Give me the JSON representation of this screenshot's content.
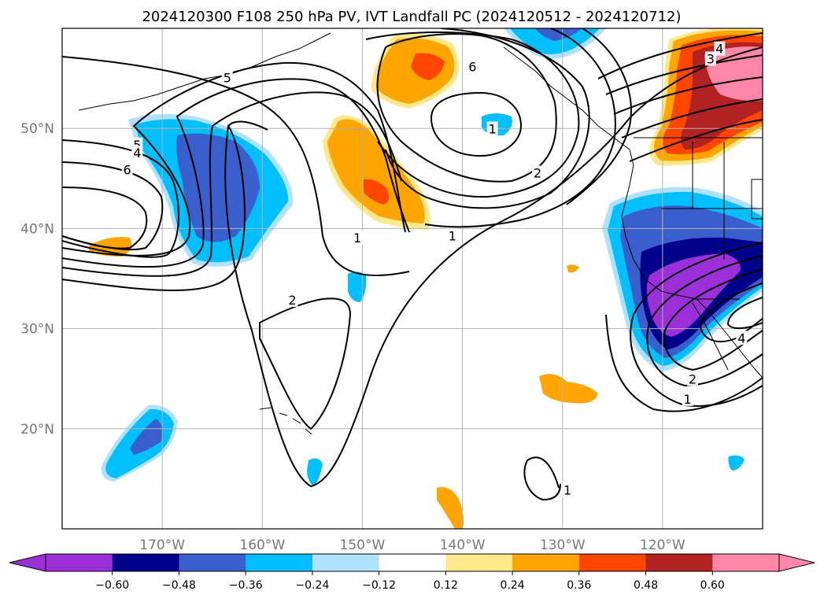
{
  "title": "2024120300 F108 250 hPa PV, IVT Landfall PC (2024120512 - 2024120712)",
  "map": {
    "lon_range": [
      -180,
      -110
    ],
    "lat_range": [
      10,
      60
    ],
    "lat_ticks": [
      {
        "value": 50,
        "label": "50°N"
      },
      {
        "value": 40,
        "label": "40°N"
      },
      {
        "value": 30,
        "label": "30°N"
      },
      {
        "value": 20,
        "label": "20°N"
      }
    ],
    "lon_ticks": [
      {
        "value": -170,
        "label": "170°W"
      },
      {
        "value": -160,
        "label": "160°W"
      },
      {
        "value": -150,
        "label": "150°W"
      },
      {
        "value": -140,
        "label": "140°W"
      },
      {
        "value": -130,
        "label": "130°W"
      },
      {
        "value": -120,
        "label": "120°W"
      }
    ],
    "grid": true
  },
  "contour_labels": [
    {
      "text": "5",
      "lon": -172.5,
      "lat": 48.3
    },
    {
      "text": "4",
      "lon": -172.5,
      "lat": 47.5
    },
    {
      "text": "6",
      "lon": -173.5,
      "lat": 45.8
    },
    {
      "text": "5",
      "lon": -163.5,
      "lat": 55.0
    },
    {
      "text": "6",
      "lon": -139.0,
      "lat": 56.1
    },
    {
      "text": "1",
      "lon": -137.0,
      "lat": 49.9
    },
    {
      "text": "2",
      "lon": -132.5,
      "lat": 45.5
    },
    {
      "text": "1",
      "lon": -150.5,
      "lat": 39.0
    },
    {
      "text": "1",
      "lon": -141.0,
      "lat": 39.2
    },
    {
      "text": "2",
      "lon": -157.0,
      "lat": 32.8
    },
    {
      "text": "1",
      "lon": -129.5,
      "lat": 13.8
    },
    {
      "text": "3",
      "lon": -115.2,
      "lat": 56.9
    },
    {
      "text": "4",
      "lon": -114.3,
      "lat": 57.9
    },
    {
      "text": "4",
      "lon": -112.1,
      "lat": 29.0
    },
    {
      "text": "2",
      "lon": -117.0,
      "lat": 24.9
    },
    {
      "text": "1",
      "lon": -117.5,
      "lat": 22.9
    }
  ],
  "colorbar": {
    "levels": [
      -0.72,
      -0.6,
      -0.48,
      -0.36,
      -0.24,
      -0.12,
      0.12,
      0.24,
      0.36,
      0.48,
      0.6,
      0.72
    ],
    "labels": [
      "−0.60",
      "−0.48",
      "−0.36",
      "−0.24",
      "−0.12",
      "0.12",
      "0.24",
      "0.36",
      "0.48",
      "0.60"
    ],
    "colors": {
      "below": "#9b30d9",
      "bins": [
        "#9b30d9",
        "#00008b",
        "#3a5fcd",
        "#00bfff",
        "#b0e2ff",
        "#ffffff",
        "#fde98c",
        "#ffa500",
        "#ff4500",
        "#b22222",
        "#ff88aa"
      ],
      "above": "#ff88aa"
    },
    "extend": "both"
  }
}
